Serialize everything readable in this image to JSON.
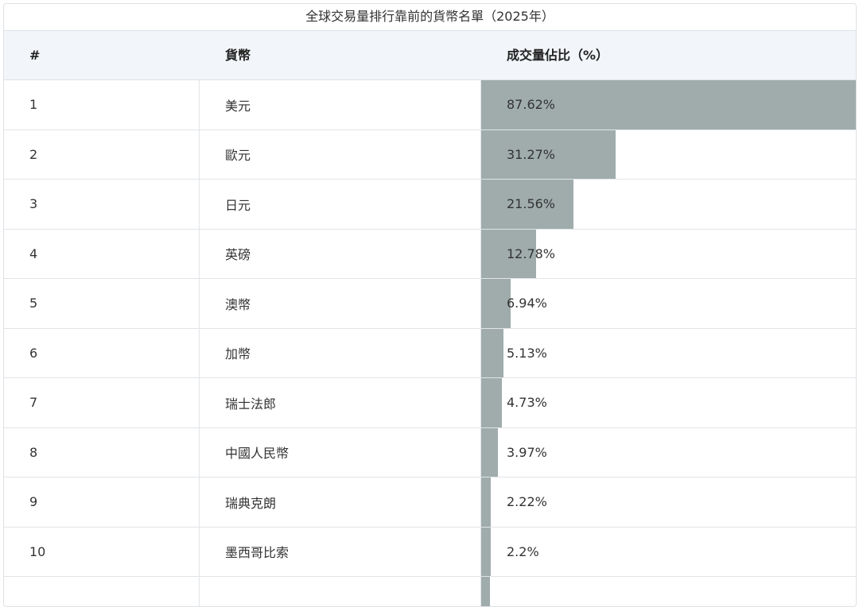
{
  "table": {
    "caption": "全球交易量排行靠前的貨幣名單（2025年）",
    "headers": [
      "#",
      "貨幣",
      "成交量佔比（%）"
    ],
    "bar_color": "#9facab",
    "rows": [
      {
        "rank": "1",
        "currency": "美元",
        "share_text": "87.62%",
        "share": 87.62
      },
      {
        "rank": "2",
        "currency": "歐元",
        "share_text": "31.27%",
        "share": 31.27
      },
      {
        "rank": "3",
        "currency": "日元",
        "share_text": "21.56%",
        "share": 21.56
      },
      {
        "rank": "4",
        "currency": "英磅",
        "share_text": "12.78%",
        "share": 12.78
      },
      {
        "rank": "5",
        "currency": "澳幣",
        "share_text": "6.94%",
        "share": 6.94
      },
      {
        "rank": "6",
        "currency": "加幣",
        "share_text": "5.13%",
        "share": 5.13
      },
      {
        "rank": "7",
        "currency": "瑞士法郎",
        "share_text": "4.73%",
        "share": 4.73
      },
      {
        "rank": "8",
        "currency": "中國人民幣",
        "share_text": "3.97%",
        "share": 3.97
      },
      {
        "rank": "9",
        "currency": "瑞典克朗",
        "share_text": "2.22%",
        "share": 2.22
      },
      {
        "rank": "10",
        "currency": "墨西哥比索",
        "share_text": "2.2%",
        "share": 2.2
      },
      {
        "rank": "",
        "currency": "",
        "share_text": "",
        "share": 2.0
      }
    ]
  }
}
